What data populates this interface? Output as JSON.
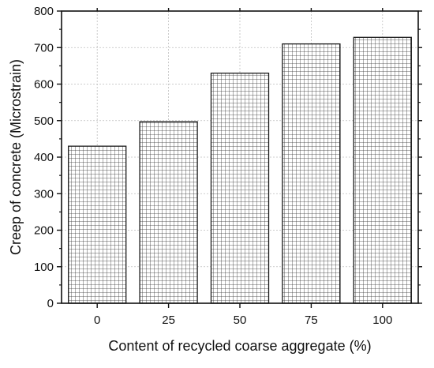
{
  "chart_data": {
    "type": "bar",
    "categories": [
      "0",
      "25",
      "50",
      "75",
      "100"
    ],
    "values": [
      430,
      497,
      630,
      710,
      728
    ],
    "title": "",
    "xlabel": "Content of recycled coarse aggregate (%)",
    "ylabel": "Creep of concrete (Microstrain)",
    "ylim": [
      0,
      800
    ],
    "yticks": [
      0,
      100,
      200,
      300,
      400,
      500,
      600,
      700,
      800
    ],
    "grid": true,
    "bar_pattern": "grid-hatch",
    "colors": {
      "bar_fill": "#ffffff",
      "bar_stroke": "#1a1a1a",
      "hatch": "#333333",
      "axis": "#111111",
      "gridline": "#bdbdbd"
    }
  }
}
